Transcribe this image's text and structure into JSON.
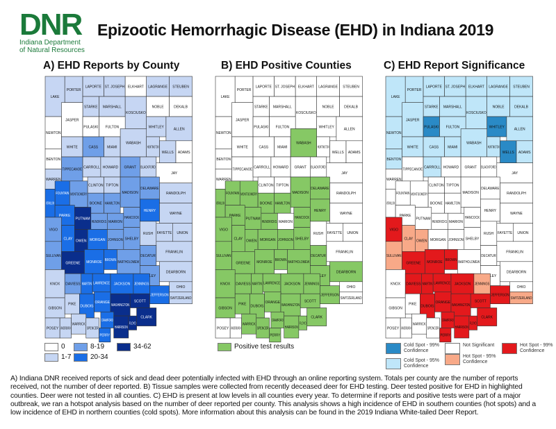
{
  "logo": {
    "mark": "DNR",
    "line1": "Indiana Department",
    "line2": "of Natural Resources"
  },
  "title": "Epizootic Hemorrhagic Disease (EHD) in Indiana 2019",
  "maps": {
    "a": {
      "title": "A) EHD Reports by County"
    },
    "b": {
      "title": "B) EHD Positive Counties"
    },
    "c": {
      "title": "C) EHD Report Significance"
    }
  },
  "colors": {
    "a": [
      "#ffffff",
      "#c6d6f3",
      "#6f9fe8",
      "#1a6ee6",
      "#0a2e8c"
    ],
    "b": [
      "#ffffff",
      "#86c865"
    ],
    "c": {
      "cs99": "#2a8ac6",
      "cs95": "#bfe6f9",
      "ns": "#ffffff",
      "hs95": "#f8a988",
      "hs99": "#e3191c"
    }
  },
  "legend_a": [
    {
      "label": "0",
      "class": 0
    },
    {
      "label": "1-7",
      "class": 1
    },
    {
      "label": "8-19",
      "class": 2
    },
    {
      "label": "20-34",
      "class": 3
    },
    {
      "label": "34-62",
      "class": 4
    }
  ],
  "legend_b": [
    {
      "label": "Positive test results",
      "class": 1
    }
  ],
  "legend_c": [
    {
      "label": "Cold Spot - 99% Confidence",
      "class": "cs99"
    },
    {
      "label": "Cold Spot - 95% Confidence",
      "class": "cs95"
    },
    {
      "label": "Not Significant",
      "class": "ns"
    },
    {
      "label": "Hot Spot - 95% Confidence",
      "class": "hs95"
    },
    {
      "label": "Hot Spot - 99% Confidence",
      "class": "hs99"
    }
  ],
  "counties": [
    {
      "name": "LAKE",
      "a": 1,
      "b": 0,
      "c": "cs95"
    },
    {
      "name": "PORTER",
      "a": 1,
      "b": 0,
      "c": "cs95"
    },
    {
      "name": "LAPORTE",
      "a": 1,
      "b": 0,
      "c": "cs95"
    },
    {
      "name": "ST. JOSEPH",
      "a": 1,
      "b": 0,
      "c": "cs95"
    },
    {
      "name": "ELKHART",
      "a": 0,
      "b": 0,
      "c": "cs95"
    },
    {
      "name": "LAGRANGE",
      "a": 1,
      "b": 0,
      "c": "cs95"
    },
    {
      "name": "STEUBEN",
      "a": 1,
      "b": 0,
      "c": "cs95"
    },
    {
      "name": "STARKE",
      "a": 1,
      "b": 0,
      "c": "cs95"
    },
    {
      "name": "MARSHALL",
      "a": 1,
      "b": 0,
      "c": "cs95"
    },
    {
      "name": "KOSCIUSKO",
      "a": 1,
      "b": 0,
      "c": "cs95"
    },
    {
      "name": "NOBLE",
      "a": 0,
      "b": 0,
      "c": "cs95"
    },
    {
      "name": "DEKALB",
      "a": 0,
      "b": 0,
      "c": "cs95"
    },
    {
      "name": "NEWTON",
      "a": 0,
      "b": 0,
      "c": "cs95"
    },
    {
      "name": "JASPER",
      "a": 0,
      "b": 0,
      "c": "cs95"
    },
    {
      "name": "PULASKI",
      "a": 0,
      "b": 0,
      "c": "cs99"
    },
    {
      "name": "FULTON",
      "a": 0,
      "b": 0,
      "c": "cs95"
    },
    {
      "name": "WHITLEY",
      "a": 1,
      "b": 0,
      "c": "cs99"
    },
    {
      "name": "ALLEN",
      "a": 1,
      "b": 0,
      "c": "cs95"
    },
    {
      "name": "BENTON",
      "a": 0,
      "b": 0,
      "c": "cs95"
    },
    {
      "name": "WHITE",
      "a": 1,
      "b": 0,
      "c": "cs95"
    },
    {
      "name": "CASS",
      "a": 2,
      "b": 0,
      "c": "cs95"
    },
    {
      "name": "MIAMI",
      "a": 1,
      "b": 0,
      "c": "cs95"
    },
    {
      "name": "WABASH",
      "a": 1,
      "b": 1,
      "c": "cs95"
    },
    {
      "name": "HUNTINGTON",
      "a": 1,
      "b": 0,
      "c": "cs95"
    },
    {
      "name": "WELLS",
      "a": 1,
      "b": 0,
      "c": "cs99"
    },
    {
      "name": "ADAMS",
      "a": 0,
      "b": 0,
      "c": "cs95"
    },
    {
      "name": "WARREN",
      "a": 1,
      "b": 0,
      "c": "ns"
    },
    {
      "name": "TIPPECANOE",
      "a": 2,
      "b": 0,
      "c": "ns"
    },
    {
      "name": "CARROLL",
      "a": 1,
      "b": 0,
      "c": "cs95"
    },
    {
      "name": "HOWARD",
      "a": 1,
      "b": 0,
      "c": "ns"
    },
    {
      "name": "GRANT",
      "a": 2,
      "b": 0,
      "c": "ns"
    },
    {
      "name": "BLACKFORD",
      "a": 1,
      "b": 0,
      "c": "ns"
    },
    {
      "name": "JAY",
      "a": 0,
      "b": 0,
      "c": "ns"
    },
    {
      "name": "FOUNTAIN",
      "a": 3,
      "b": 1,
      "c": "ns"
    },
    {
      "name": "MONTGOMERY",
      "a": 2,
      "b": 1,
      "c": "ns"
    },
    {
      "name": "CLINTON",
      "a": 1,
      "b": 0,
      "c": "ns"
    },
    {
      "name": "TIPTON",
      "a": 1,
      "b": 0,
      "c": "ns"
    },
    {
      "name": "MADISON",
      "a": 2,
      "b": 1,
      "c": "ns"
    },
    {
      "name": "DELAWARE",
      "a": 2,
      "b": 1,
      "c": "ns"
    },
    {
      "name": "RANDOLPH",
      "a": 1,
      "b": 0,
      "c": "ns"
    },
    {
      "name": "VERMILLION",
      "a": 3,
      "b": 1,
      "c": "ns"
    },
    {
      "name": "PARKE",
      "a": 3,
      "b": 1,
      "c": "ns"
    },
    {
      "name": "BOONE",
      "a": 2,
      "b": 1,
      "c": "ns"
    },
    {
      "name": "HAMILTON",
      "a": 2,
      "b": 1,
      "c": "ns"
    },
    {
      "name": "HENRY",
      "a": 3,
      "b": 1,
      "c": "ns"
    },
    {
      "name": "WAYNE",
      "a": 1,
      "b": 0,
      "c": "ns"
    },
    {
      "name": "PUTNAM",
      "a": 4,
      "b": 1,
      "c": "ns"
    },
    {
      "name": "HENDRICKS",
      "a": 2,
      "b": 1,
      "c": "ns"
    },
    {
      "name": "MARION",
      "a": 2,
      "b": 0,
      "c": "ns"
    },
    {
      "name": "HANCOCK",
      "a": 2,
      "b": 1,
      "c": "ns"
    },
    {
      "name": "VIGO",
      "a": 2,
      "b": 1,
      "c": "hs99"
    },
    {
      "name": "CLAY",
      "a": 3,
      "b": 1,
      "c": "hs95"
    },
    {
      "name": "OWEN",
      "a": 4,
      "b": 1,
      "c": "hs95"
    },
    {
      "name": "MORGAN",
      "a": 3,
      "b": 1,
      "c": "ns"
    },
    {
      "name": "JOHNSON",
      "a": 2,
      "b": 1,
      "c": "ns"
    },
    {
      "name": "SHELBY",
      "a": 2,
      "b": 1,
      "c": "ns"
    },
    {
      "name": "RUSH",
      "a": 1,
      "b": 0,
      "c": "ns"
    },
    {
      "name": "FAYETTE",
      "a": 1,
      "b": 0,
      "c": "ns"
    },
    {
      "name": "UNION",
      "a": 1,
      "b": 0,
      "c": "ns"
    },
    {
      "name": "FRANKLIN",
      "a": 1,
      "b": 0,
      "c": "ns"
    },
    {
      "name": "DECATUR",
      "a": 2,
      "b": 1,
      "c": "ns"
    },
    {
      "name": "SULLIVAN",
      "a": 2,
      "b": 1,
      "c": "hs95"
    },
    {
      "name": "GREENE",
      "a": 4,
      "b": 1,
      "c": "hs99"
    },
    {
      "name": "MONROE",
      "a": 3,
      "b": 1,
      "c": "hs99"
    },
    {
      "name": "BROWN",
      "a": 3,
      "b": 1,
      "c": "hs99"
    },
    {
      "name": "BARTHOLOMEW",
      "a": 2,
      "b": 1,
      "c": "ns"
    },
    {
      "name": "RIPLEY",
      "a": 2,
      "b": 1,
      "c": "ns"
    },
    {
      "name": "DEARBORN",
      "a": 1,
      "b": 1,
      "c": "ns"
    },
    {
      "name": "KNOX",
      "a": 1,
      "b": 1,
      "c": "ns"
    },
    {
      "name": "DAVIESS",
      "a": 2,
      "b": 1,
      "c": "hs99"
    },
    {
      "name": "MARTIN",
      "a": 3,
      "b": 1,
      "c": "hs99"
    },
    {
      "name": "LAWRENCE",
      "a": 3,
      "b": 1,
      "c": "hs99"
    },
    {
      "name": "JACKSON",
      "a": 3,
      "b": 1,
      "c": "hs99"
    },
    {
      "name": "JENNINGS",
      "a": 3,
      "b": 1,
      "c": "hs95"
    },
    {
      "name": "JEFFERSON",
      "a": 3,
      "b": 1,
      "c": "hs99"
    },
    {
      "name": "OHIO",
      "a": 1,
      "b": 0,
      "c": "ns"
    },
    {
      "name": "SWITZERLAND",
      "a": 1,
      "b": 0,
      "c": "hs95"
    },
    {
      "name": "GIBSON",
      "a": 1,
      "b": 1,
      "c": "ns"
    },
    {
      "name": "PIKE",
      "a": 1,
      "b": 1,
      "c": "ns"
    },
    {
      "name": "DUBOIS",
      "a": 3,
      "b": 1,
      "c": "hs99"
    },
    {
      "name": "ORANGE",
      "a": 3,
      "b": 1,
      "c": "hs99"
    },
    {
      "name": "WASHINGTON",
      "a": 4,
      "b": 1,
      "c": "hs99"
    },
    {
      "name": "SCOTT",
      "a": 4,
      "b": 1,
      "c": "hs99"
    },
    {
      "name": "CLARK",
      "a": 4,
      "b": 1,
      "c": "hs99"
    },
    {
      "name": "POSEY",
      "a": 1,
      "b": 0,
      "c": "ns"
    },
    {
      "name": "VANDERBURGH",
      "a": 1,
      "b": 0,
      "c": "ns"
    },
    {
      "name": "WARRICK",
      "a": 1,
      "b": 1,
      "c": "ns"
    },
    {
      "name": "SPENCER",
      "a": 1,
      "b": 1,
      "c": "ns"
    },
    {
      "name": "PERRY",
      "a": 3,
      "b": 1,
      "c": "hs99"
    },
    {
      "name": "CRAWFORD",
      "a": 3,
      "b": 1,
      "c": "hs99"
    },
    {
      "name": "HARRISON",
      "a": 4,
      "b": 1,
      "c": "hs99"
    },
    {
      "name": "FLOYD",
      "a": 4,
      "b": 1,
      "c": "hs99"
    }
  ],
  "caption": "A) Indiana DNR received reports of sick and dead deer potentially infected with EHD through an online reporting system. Totals per county are the number of reports received, not the number of deer reported. B) Tissue samples were collected from recently deceased deer for EHD testing. Deer tested positive for EHD in highlighted counties. Deer were not tested in all counties. C) EHD is present at low levels in all counties every year. To determine if reports and positive tests were part of a major outbreak, we ran a hotspot analysis based on the number of deer reported per county. This analysis shows a high incidence of EHD in southern counties (hot spots) and a low incidence of EHD in northern counties (cold spots). More information about this analysis can be found in the 2019 Indiana White-tailed Deer Report."
}
